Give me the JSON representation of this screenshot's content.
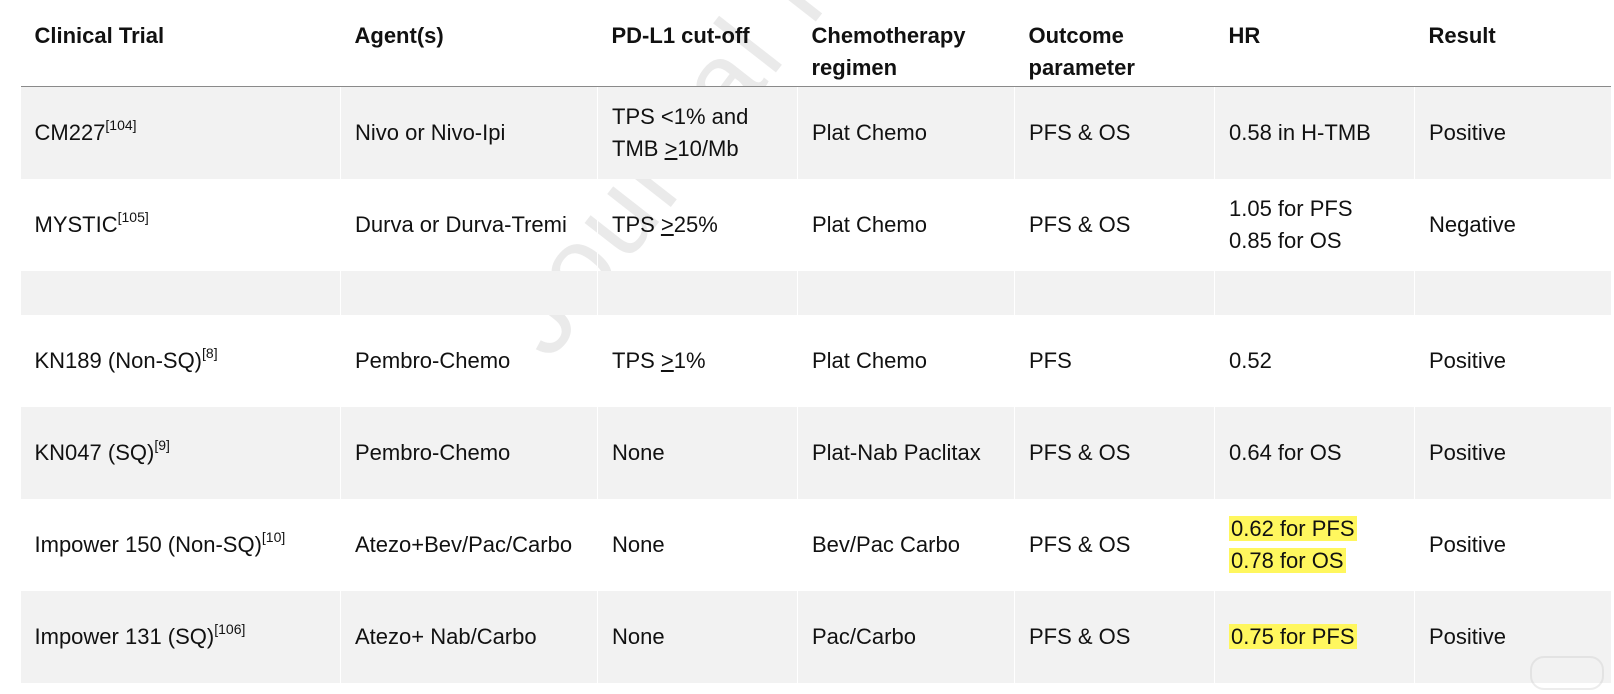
{
  "table": {
    "headers": {
      "trial": "Clinical Trial",
      "agents": "Agent(s)",
      "pdl1": "PD-L1 cut-off",
      "chemo_line1": "Chemotherapy",
      "chemo_line2": "regimen",
      "outcome_line1": "Outcome",
      "outcome_line2": "parameter",
      "hr": "HR",
      "result": "Result"
    },
    "rows": [
      {
        "trial": "CM227",
        "ref": "[104]",
        "agents": "Nivo or Nivo-Ipi",
        "pdl1_line1": "TPS <1% and",
        "pdl1_line2_prefix": "TMB ",
        "pdl1_line2_underlined": ">",
        "pdl1_line2_suffix": "10/Mb",
        "chemo": "Plat Chemo",
        "outcome": "PFS & OS",
        "hr_line1": "0.58 in H-TMB",
        "result": "Positive"
      },
      {
        "trial": "MYSTIC",
        "ref": "[105]",
        "agents": "Durva or Durva-Tremi",
        "pdl1_prefix": "TPS ",
        "pdl1_underlined": ">",
        "pdl1_suffix": "25%",
        "chemo": "Plat Chemo",
        "outcome": "PFS & OS",
        "hr_line1": "1.05 for PFS",
        "hr_line2": "0.85 for OS",
        "result": "Negative"
      },
      {
        "trial": "KN189 (Non-SQ)",
        "ref": "[8]",
        "agents": "Pembro-Chemo",
        "pdl1_prefix": "TPS ",
        "pdl1_underlined": ">",
        "pdl1_suffix": "1%",
        "chemo": "Plat Chemo",
        "outcome": "PFS",
        "hr_line1": "0.52",
        "result": "Positive"
      },
      {
        "trial": "KN047 (SQ)",
        "ref": "[9]",
        "agents": "Pembro-Chemo",
        "pdl1": "None",
        "chemo": "Plat-Nab Paclitax",
        "outcome": "PFS & OS",
        "hr_line1": "0.64 for OS",
        "result": "Positive"
      },
      {
        "trial": "Impower 150 (Non-SQ)",
        "ref": "[10]",
        "agents": "Atezo+Bev/Pac/Carbo",
        "pdl1": "None",
        "chemo": "Bev/Pac Carbo",
        "outcome": "PFS & OS",
        "hr_line1": "0.62 for PFS",
        "hr_line2": "0.78 for OS",
        "result": "Positive"
      },
      {
        "trial": "Impower 131 (SQ)",
        "ref": "[106]",
        "agents": "Atezo+ Nab/Carbo",
        "pdl1": "None",
        "chemo": "Pac/Carbo",
        "outcome": "PFS & OS",
        "hr_line1": "0.75 for PFS",
        "result": "Positive"
      }
    ]
  },
  "watermark_text": "Journal Pre-proof",
  "colors": {
    "row_shade": "#f2f2f2",
    "highlight": "#fff75e",
    "header_rule": "#8a8a8a"
  }
}
